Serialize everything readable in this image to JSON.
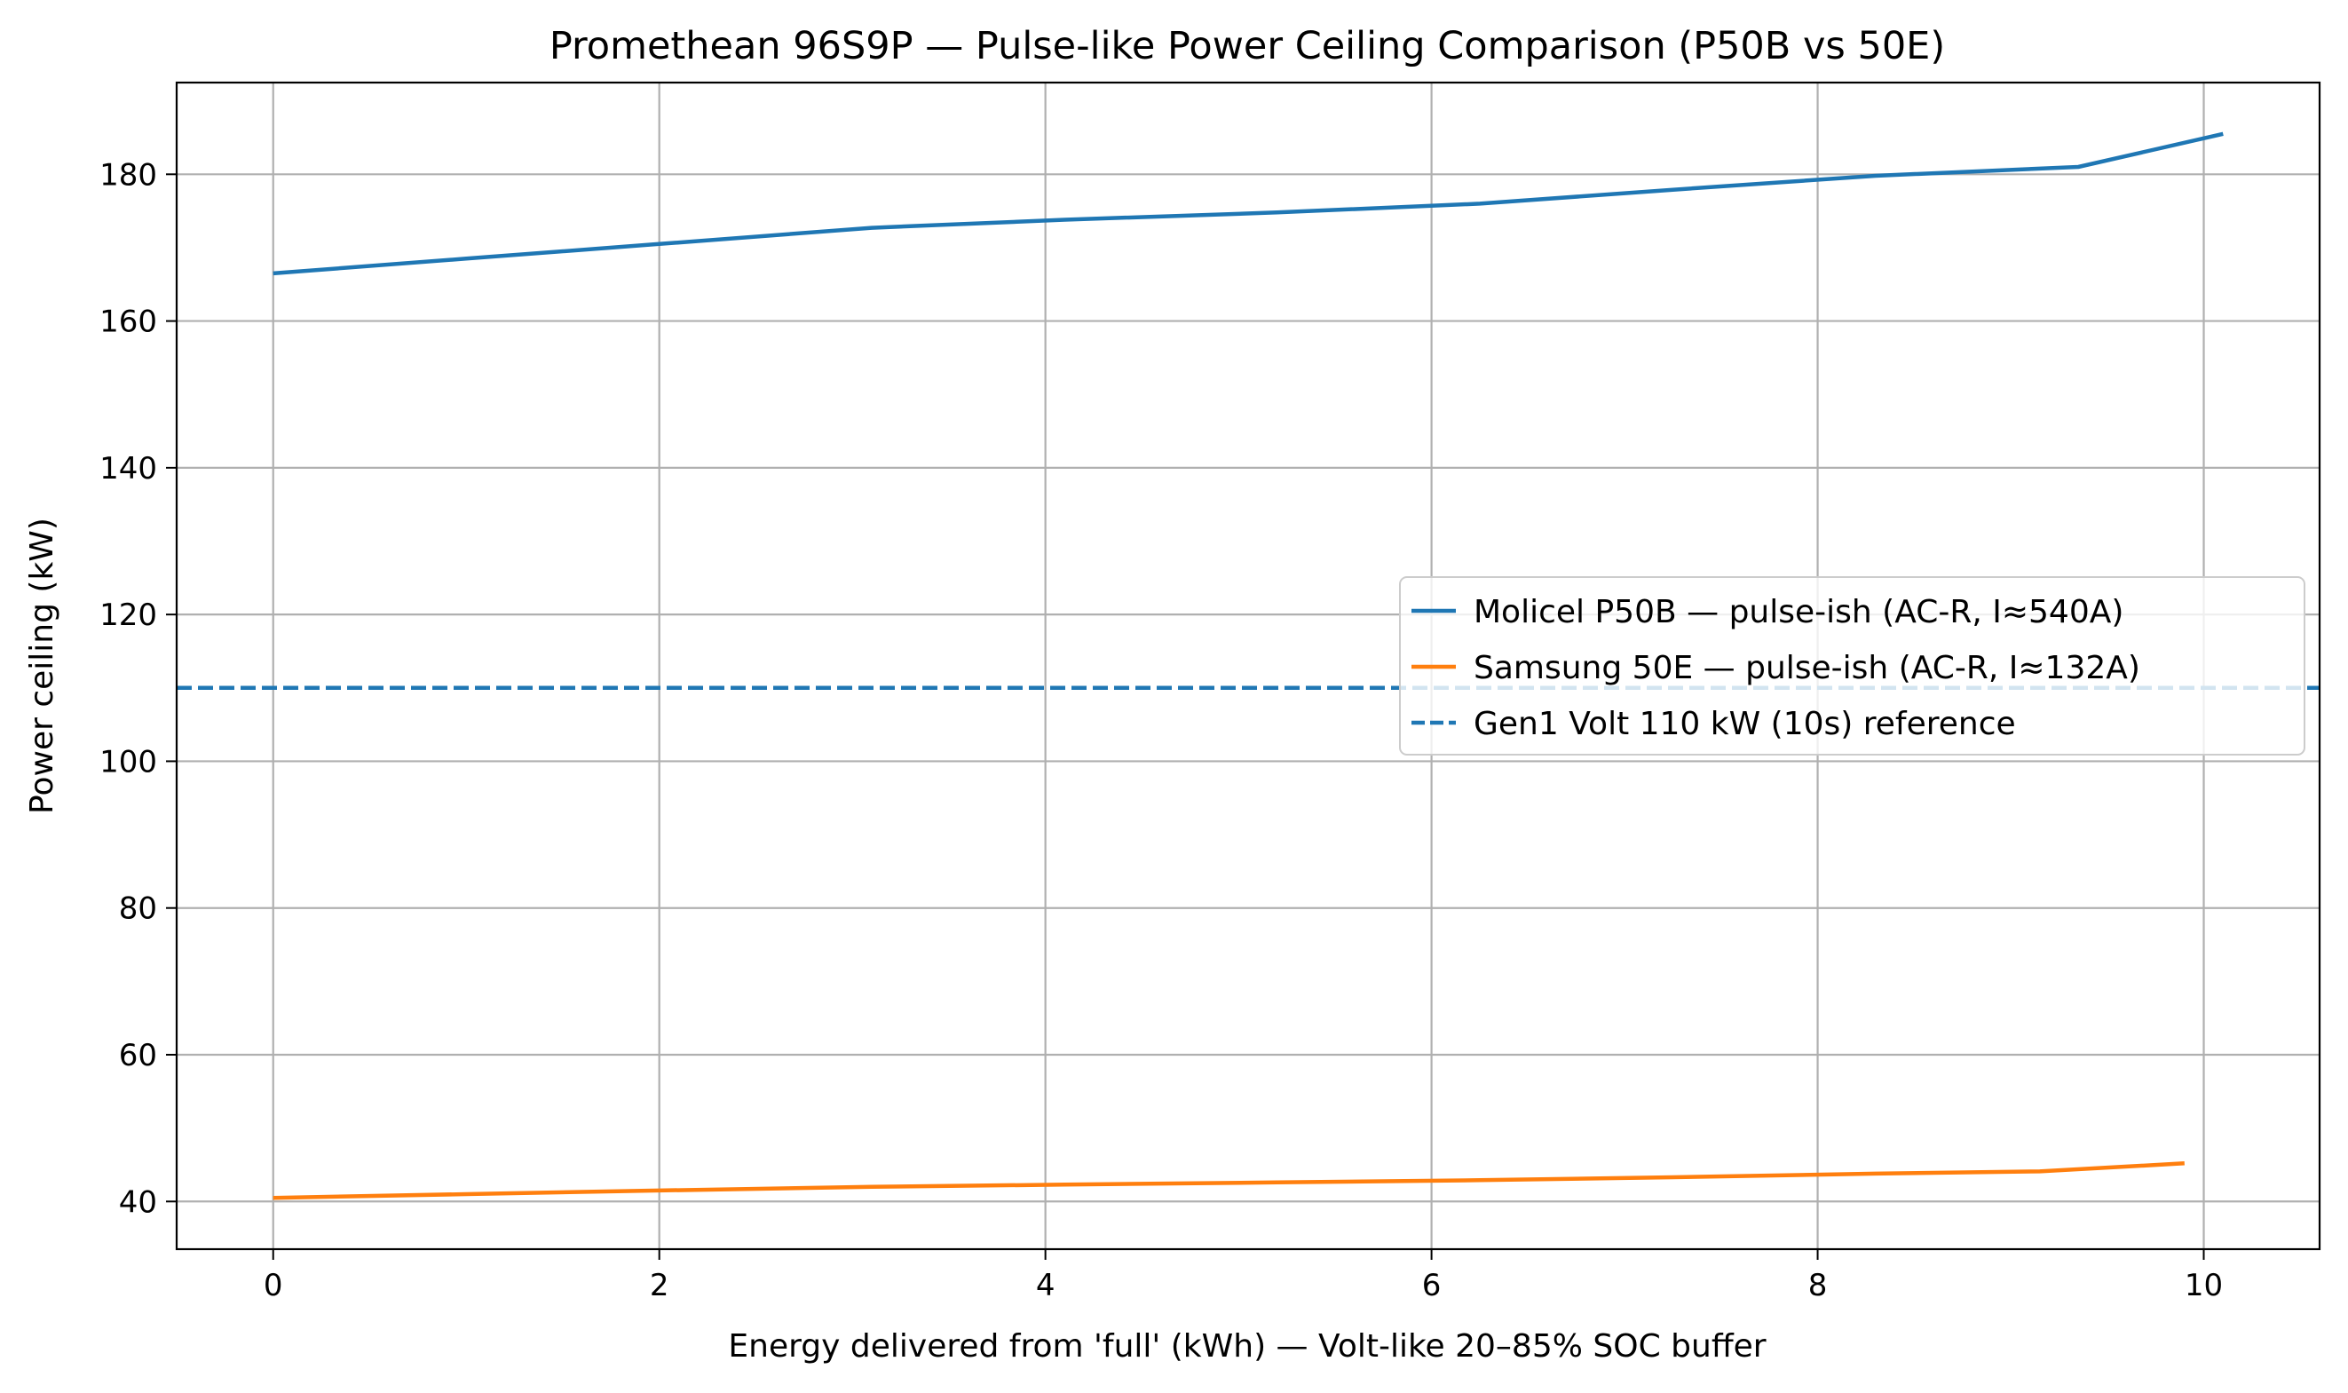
{
  "chart_data": {
    "type": "line",
    "title": "Promethean 96S9P — Pulse-like Power Ceiling Comparison (P50B vs 50E)",
    "xlabel": "Energy delivered from 'full' (kWh) — Volt-like 20–85% SOC buffer",
    "ylabel": "Power ceiling (kW)",
    "xlim": [
      -0.5,
      10.6
    ],
    "ylim": [
      33.5,
      192.5
    ],
    "xticks": [
      0,
      2,
      4,
      6,
      8,
      10
    ],
    "yticks": [
      40,
      60,
      80,
      100,
      120,
      140,
      160,
      180
    ],
    "grid": true,
    "legend_position": "center-right",
    "series": [
      {
        "name": "Molicel P50B — pulse-ish (AC-R, I≈540A)",
        "color": "#1f77b4",
        "style": "solid",
        "x": [
          0,
          1.0,
          2.0,
          3.1,
          4.1,
          5.2,
          6.25,
          7.25,
          8.3,
          9.35,
          10.1
        ],
        "y": [
          166.5,
          168.5,
          170.5,
          172.7,
          173.8,
          174.8,
          176.0,
          177.9,
          179.8,
          181.0,
          185.5
        ]
      },
      {
        "name": "Samsung 50E — pulse-ish (AC-R, I≈132A)",
        "color": "#ff7f0e",
        "style": "solid",
        "x": [
          0,
          1.0,
          2.0,
          3.1,
          4.1,
          5.2,
          6.25,
          7.25,
          8.3,
          9.15,
          9.9
        ],
        "y": [
          40.5,
          41.0,
          41.5,
          42.0,
          42.3,
          42.6,
          42.9,
          43.3,
          43.8,
          44.1,
          45.2
        ]
      },
      {
        "name": "Gen1 Volt 110 kW (10s) reference",
        "color": "#1f77b4",
        "style": "dashed",
        "x": [
          -0.5,
          10.6
        ],
        "y": [
          110,
          110
        ]
      }
    ]
  }
}
